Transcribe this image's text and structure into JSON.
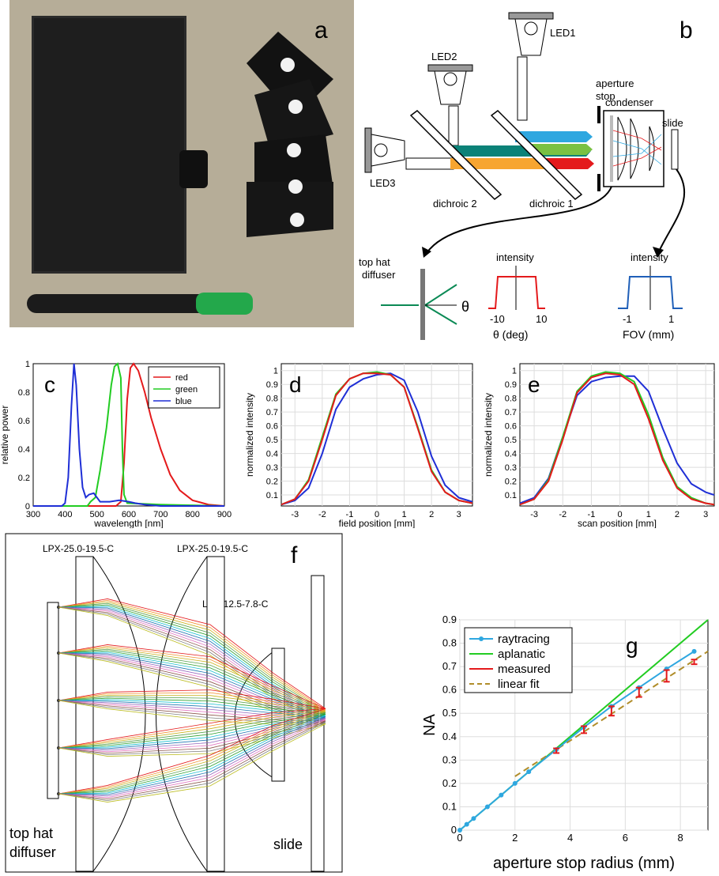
{
  "panel_a": {
    "label": "a"
  },
  "panel_b": {
    "label": "b",
    "led1": "LED1",
    "led2": "LED2",
    "led3": "LED3",
    "aperture_stop": [
      "aperture",
      "stop"
    ],
    "condenser": "condenser",
    "slide": "slide",
    "dichroic1": "dichroic 1",
    "dichroic2": "dichroic 2",
    "diffuser": [
      "top hat",
      "diffuser"
    ],
    "theta": "θ",
    "intensity": "intensity",
    "plot1_ticks": [
      "-10",
      "10"
    ],
    "plot1_xlabel": "θ (deg)",
    "plot2_ticks": [
      "-1",
      "1"
    ],
    "plot2_xlabel": "FOV (mm)"
  },
  "colors": {
    "red": "#e41a1c",
    "green": "#22cc22",
    "blue": "#1f2fd6",
    "teal": "#0b8278",
    "orange": "#f7a530",
    "sky": "#2ea7e0",
    "lime": "#7ac143",
    "tan": "#b08d2a"
  },
  "chart_data": [
    {
      "id": "c",
      "label": "c",
      "type": "line",
      "ylabel": "relative power",
      "xlabel": "wavelength [nm]",
      "xlim": [
        300,
        900
      ],
      "ylim": [
        0,
        1
      ],
      "xticks": [
        "300",
        "400",
        "500",
        "600",
        "700",
        "800",
        "900"
      ],
      "yticks": [
        "0",
        "0.2",
        "0.4",
        "0.6",
        "0.8",
        "1"
      ],
      "legend": [
        "red",
        "green",
        "blue"
      ],
      "legend_position": "top-right",
      "series": [
        {
          "name": "red",
          "x": [
            300,
            560,
            575,
            585,
            595,
            605,
            615,
            630,
            650,
            670,
            700,
            730,
            760,
            800,
            850,
            900
          ],
          "y": [
            0,
            0,
            0.03,
            0.3,
            0.75,
            0.97,
            1.0,
            0.95,
            0.8,
            0.62,
            0.4,
            0.22,
            0.11,
            0.04,
            0.01,
            0
          ]
        },
        {
          "name": "green",
          "x": [
            300,
            470,
            480,
            495,
            510,
            530,
            545,
            555,
            565,
            575,
            580,
            585,
            595,
            700,
            900
          ],
          "y": [
            0,
            0,
            0.03,
            0.06,
            0.25,
            0.55,
            0.85,
            0.98,
            1.0,
            0.9,
            0.4,
            0.08,
            0.02,
            0.01,
            0
          ]
        },
        {
          "name": "blue",
          "x": [
            300,
            390,
            400,
            410,
            420,
            428,
            435,
            445,
            455,
            465,
            475,
            490,
            510,
            540,
            570,
            600,
            620,
            650,
            700,
            900
          ],
          "y": [
            0,
            0,
            0.02,
            0.2,
            0.7,
            1.0,
            0.85,
            0.4,
            0.13,
            0.06,
            0.08,
            0.09,
            0.03,
            0.03,
            0.04,
            0.03,
            0.02,
            0.01,
            0,
            0
          ]
        }
      ]
    },
    {
      "id": "d",
      "label": "d",
      "type": "line",
      "ylabel": "normalized intensity",
      "xlabel": "field position [mm]",
      "xlim": [
        -3.5,
        3.5
      ],
      "ylim": [
        0.02,
        1.05
      ],
      "xticks": [
        "-3",
        "-2",
        "-1",
        "0",
        "1",
        "2",
        "3"
      ],
      "yticks": [
        "0.1",
        "0.2",
        "0.3",
        "0.4",
        "0.5",
        "0.6",
        "0.7",
        "0.8",
        "0.9",
        "1"
      ],
      "series": [
        {
          "name": "red",
          "x": [
            -3.5,
            -3,
            -2.5,
            -2,
            -1.5,
            -1,
            -0.5,
            0,
            0.5,
            1,
            1.5,
            2,
            2.5,
            3,
            3.5
          ],
          "y": [
            0.03,
            0.07,
            0.2,
            0.5,
            0.82,
            0.94,
            0.98,
            0.98,
            0.97,
            0.88,
            0.58,
            0.27,
            0.12,
            0.06,
            0.04
          ]
        },
        {
          "name": "green",
          "x": [
            -3.5,
            -3,
            -2.5,
            -2,
            -1.5,
            -1,
            -0.5,
            0,
            0.5,
            1,
            1.5,
            2,
            2.5,
            3,
            3.5
          ],
          "y": [
            0.03,
            0.07,
            0.21,
            0.52,
            0.83,
            0.94,
            0.98,
            0.99,
            0.97,
            0.88,
            0.59,
            0.28,
            0.12,
            0.06,
            0.04
          ]
        },
        {
          "name": "blue",
          "x": [
            -3.5,
            -3,
            -2.5,
            -2,
            -1.5,
            -1,
            -0.5,
            0,
            0.5,
            1,
            1.5,
            2,
            2.5,
            3,
            3.5
          ],
          "y": [
            0.03,
            0.06,
            0.15,
            0.4,
            0.72,
            0.88,
            0.94,
            0.97,
            0.98,
            0.93,
            0.7,
            0.38,
            0.17,
            0.08,
            0.05
          ]
        }
      ]
    },
    {
      "id": "e",
      "label": "e",
      "type": "line",
      "ylabel": "normalized intensity",
      "xlabel": "scan position [mm]",
      "xlim": [
        -3.5,
        3.3
      ],
      "ylim": [
        0.02,
        1.05
      ],
      "xticks": [
        "-3",
        "-2",
        "-1",
        "0",
        "1",
        "2",
        "3"
      ],
      "yticks": [
        "0.1",
        "0.2",
        "0.3",
        "0.4",
        "0.5",
        "0.6",
        "0.7",
        "0.8",
        "0.9",
        "1"
      ],
      "series": [
        {
          "name": "red",
          "x": [
            -3.5,
            -3,
            -2.5,
            -2,
            -1.5,
            -1,
            -0.5,
            0,
            0.5,
            1,
            1.5,
            2,
            2.5,
            3,
            3.3
          ],
          "y": [
            0.03,
            0.07,
            0.2,
            0.5,
            0.84,
            0.95,
            0.98,
            0.97,
            0.9,
            0.65,
            0.35,
            0.15,
            0.07,
            0.04,
            0.03
          ]
        },
        {
          "name": "green",
          "x": [
            -3.5,
            -3,
            -2.5,
            -2,
            -1.5,
            -1,
            -0.5,
            0,
            0.5,
            1,
            1.5,
            2,
            2.5,
            3,
            3.3
          ],
          "y": [
            0.03,
            0.07,
            0.21,
            0.52,
            0.85,
            0.96,
            0.99,
            0.98,
            0.92,
            0.68,
            0.37,
            0.16,
            0.08,
            0.04,
            0.03
          ]
        },
        {
          "name": "blue",
          "x": [
            -3.5,
            -3,
            -2.5,
            -2,
            -1.5,
            -1,
            -0.5,
            0,
            0.5,
            1,
            1.5,
            2,
            2.5,
            3,
            3.3
          ],
          "y": [
            0.04,
            0.08,
            0.22,
            0.52,
            0.82,
            0.92,
            0.95,
            0.96,
            0.96,
            0.85,
            0.58,
            0.33,
            0.18,
            0.12,
            0.1
          ]
        }
      ]
    },
    {
      "id": "g",
      "label": "g",
      "type": "line",
      "ylabel": "NA",
      "xlabel": "aperture stop radius (mm)",
      "xlim": [
        0,
        9
      ],
      "ylim": [
        0,
        0.9
      ],
      "xticks": [
        "0",
        "2",
        "4",
        "6",
        "8"
      ],
      "yticks": [
        "0",
        "0.1",
        "0.2",
        "0.3",
        "0.4",
        "0.5",
        "0.6",
        "0.7",
        "0.8",
        "0.9"
      ],
      "legend": [
        "raytracing",
        "aplanatic",
        "measured",
        "linear fit"
      ],
      "legend_position": "top-left",
      "raytracing": {
        "x": [
          0,
          0.25,
          0.5,
          1,
          1.5,
          2,
          2.5,
          3.5,
          4.5,
          5.5,
          6.5,
          7.5,
          8.5
        ],
        "y": [
          0,
          0.025,
          0.05,
          0.1,
          0.15,
          0.2,
          0.25,
          0.345,
          0.44,
          0.53,
          0.61,
          0.69,
          0.765
        ]
      },
      "aplanatic": {
        "x": [
          0,
          9
        ],
        "y": [
          0,
          0.9
        ]
      },
      "measured": {
        "x": [
          3.5,
          4.5,
          5.5,
          6.5,
          7.5,
          8.5
        ],
        "y": [
          0.34,
          0.43,
          0.51,
          0.59,
          0.66,
          0.72
        ],
        "err": [
          0.01,
          0.015,
          0.02,
          0.02,
          0.025,
          0.01
        ]
      },
      "linear_fit": {
        "x": [
          2,
          9
        ],
        "y": [
          0.23,
          0.765
        ]
      }
    }
  ],
  "panel_f": {
    "label": "f",
    "lens1": "LPX-25.0-19.5-C",
    "lens2": "LPX-25.0-19.5-C",
    "lens3": "LPX-12.5-7.8-C",
    "diffuser": [
      "top hat",
      "diffuser"
    ],
    "slide": "slide"
  }
}
